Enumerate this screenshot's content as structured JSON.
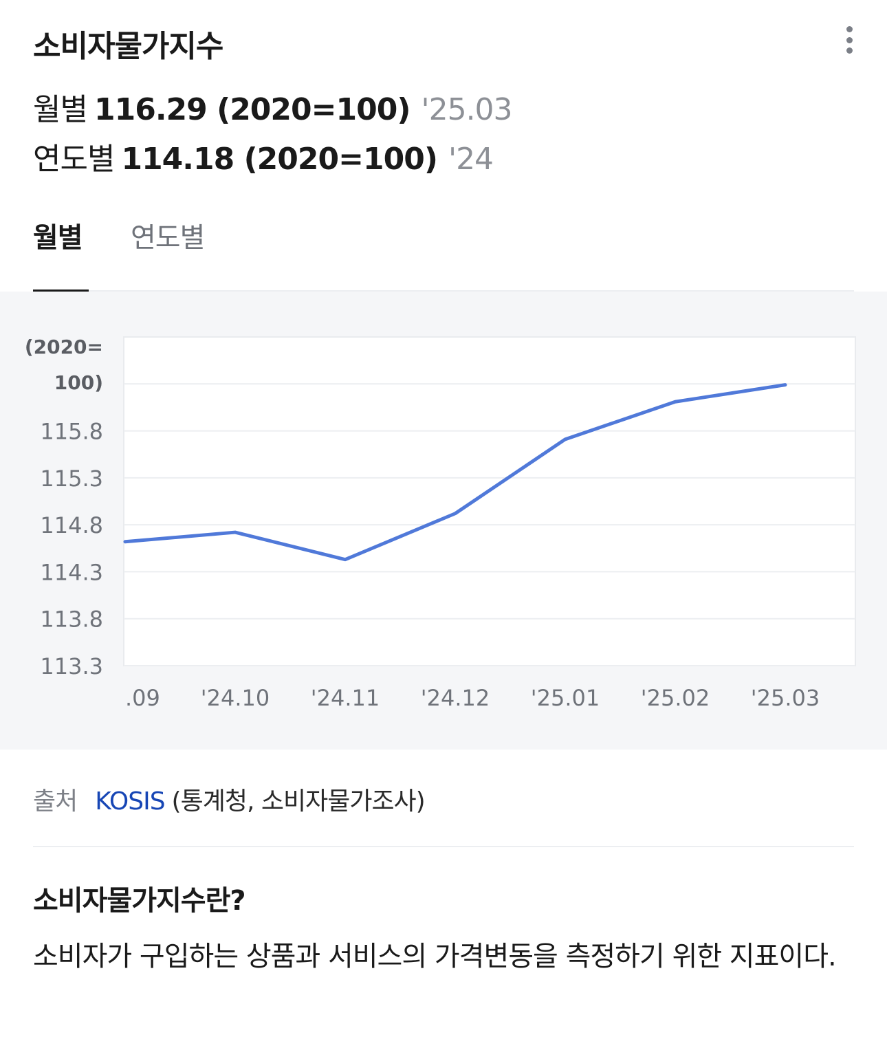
{
  "header": {
    "title": "소비자물가지수",
    "more_icon": "more-vertical-icon"
  },
  "summary": {
    "monthly": {
      "label": "월별",
      "value": "116.29 (2020=100)",
      "period": "'25.03"
    },
    "yearly": {
      "label": "연도별",
      "value": "114.18 (2020=100)",
      "period": "'24"
    }
  },
  "tabs": [
    {
      "label": "월별",
      "active": true
    },
    {
      "label": "연도별",
      "active": false
    }
  ],
  "chart_data": {
    "type": "line",
    "ylabel": "(2020=100)",
    "x": [
      ".09",
      "'24.10",
      "'24.11",
      "'24.12",
      "'25.01",
      "'25.02",
      "'25.03"
    ],
    "series": [
      {
        "values": [
          114.62,
          114.72,
          114.43,
          114.92,
          115.71,
          116.11,
          116.29
        ]
      }
    ],
    "yticks": [
      "115.8",
      "115.3",
      "114.8",
      "114.3",
      "113.8",
      "113.3"
    ],
    "ylim": [
      113.3,
      116.8
    ],
    "grid": true,
    "line_color": "#5079d9"
  },
  "source": {
    "label": "출처",
    "link": "KOSIS",
    "detail": "(통계청, 소비자물가조사)"
  },
  "about": {
    "title": "소비자물가지수란?",
    "body": "소비자가 구입하는 상품과 서비스의 가격변동을 측정하기 위한 지표이다."
  }
}
